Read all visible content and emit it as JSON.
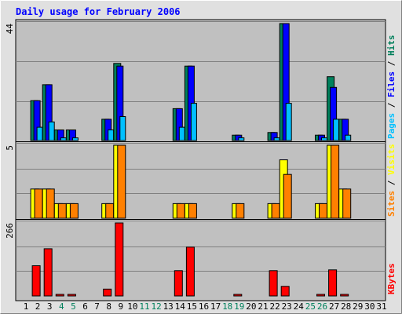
{
  "chart_data": {
    "type": "bar",
    "title": "Daily usage for February 2006",
    "colors": {
      "hits": "#00805C",
      "files": "#0000FF",
      "pages": "#00C0FF",
      "visits": "#FFFF00",
      "sites": "#FF8000",
      "kbytes": "#FF0000",
      "weekend_label": "#00805C",
      "title": "#0000FF",
      "frame_bg": "#C0C0C0",
      "page_bg": "#E0E0E0"
    },
    "x": [
      "1",
      "2",
      "3",
      "4",
      "5",
      "6",
      "7",
      "8",
      "9",
      "10",
      "11",
      "12",
      "13",
      "14",
      "15",
      "16",
      "17",
      "18",
      "19",
      "20",
      "21",
      "22",
      "23",
      "24",
      "25",
      "26",
      "27",
      "28",
      "29",
      "30",
      "31"
    ],
    "weekend_days": [
      "4",
      "5",
      "11",
      "12",
      "18",
      "19",
      "25",
      "26"
    ],
    "panels": [
      {
        "name": "hits_files_pages",
        "max_label": "44",
        "ylim": [
          0,
          44
        ],
        "legend": [
          {
            "label": "Pages",
            "color": "#00C0FF"
          },
          {
            "label": " / ",
            "color": "#000000"
          },
          {
            "label": "Files",
            "color": "#0000FF"
          },
          {
            "label": " / ",
            "color": "#000000"
          },
          {
            "label": "Hits",
            "color": "#00805C"
          }
        ],
        "series": [
          {
            "name": "Hits",
            "values": [
              0,
              15,
              21,
              4,
              4,
              0,
              0,
              8,
              29,
              0,
              0,
              0,
              0,
              12,
              28,
              0,
              0,
              0,
              2,
              0,
              0,
              3,
              44,
              0,
              0,
              2,
              24,
              8,
              0,
              0,
              0
            ]
          },
          {
            "name": "Files",
            "values": [
              0,
              15,
              21,
              4,
              4,
              0,
              0,
              8,
              28,
              0,
              0,
              0,
              0,
              12,
              28,
              0,
              0,
              0,
              2,
              0,
              0,
              3,
              44,
              0,
              0,
              2,
              20,
              8,
              0,
              0,
              0
            ]
          },
          {
            "name": "Pages",
            "values": [
              0,
              5,
              7,
              1,
              1,
              0,
              0,
              4,
              9,
              0,
              0,
              0,
              0,
              5,
              14,
              0,
              0,
              0,
              1,
              0,
              0,
              1,
              14,
              0,
              0,
              1,
              8,
              2,
              0,
              0,
              0
            ]
          }
        ]
      },
      {
        "name": "visits_sites",
        "max_label": "5",
        "ylim": [
          0,
          5
        ],
        "legend": [
          {
            "label": "Sites",
            "color": "#FF8000"
          },
          {
            "label": " / ",
            "color": "#000000"
          },
          {
            "label": "Visits",
            "color": "#FFFF00"
          }
        ],
        "series": [
          {
            "name": "Visits",
            "values": [
              0,
              2,
              2,
              1,
              1,
              0,
              0,
              1,
              5,
              0,
              0,
              0,
              0,
              1,
              1,
              0,
              0,
              0,
              1,
              0,
              0,
              1,
              4,
              0,
              0,
              1,
              5,
              2,
              0,
              0,
              0
            ]
          },
          {
            "name": "Sites",
            "values": [
              0,
              2,
              2,
              1,
              1,
              0,
              0,
              1,
              5,
              0,
              0,
              0,
              0,
              1,
              1,
              0,
              0,
              0,
              1,
              0,
              0,
              1,
              3,
              0,
              0,
              1,
              5,
              2,
              0,
              0,
              0
            ]
          }
        ]
      },
      {
        "name": "kbytes",
        "max_label": "266",
        "ylim": [
          0,
          266
        ],
        "legend": [
          {
            "label": "KBytes",
            "color": "#FF0000"
          }
        ],
        "series": [
          {
            "name": "KBytes",
            "values": [
              0,
              110,
              172,
              3,
              3,
              0,
              0,
              25,
              266,
              0,
              0,
              0,
              0,
              92,
              178,
              0,
              0,
              0,
              3,
              0,
              0,
              92,
              35,
              0,
              0,
              3,
              95,
              3,
              0,
              0,
              0
            ]
          }
        ]
      }
    ]
  }
}
